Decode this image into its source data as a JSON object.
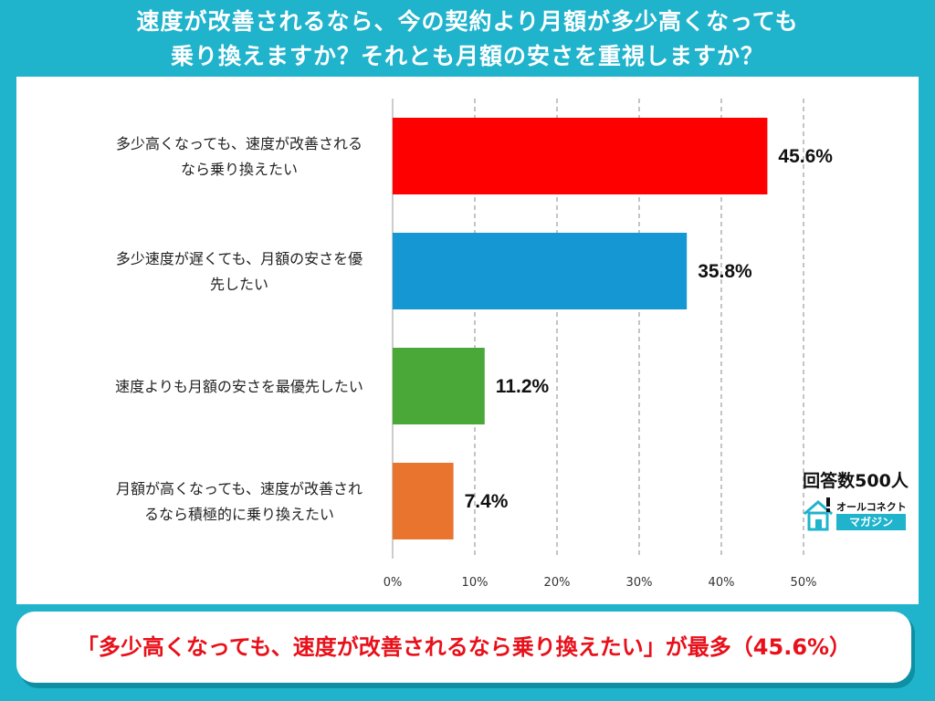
{
  "title_line1": "速度が改善されるなら、今の契約より月額が多少高くなっても",
  "title_line2": "乗り換えますか？それとも月額の安さを重視しますか？",
  "respondents": "回答数500人",
  "logo": {
    "top": "オールコネクト",
    "bottom": "マガジン",
    "icon": "house-icon"
  },
  "summary": "「多少高くなっても、速度が改善されるなら乗り換えたい」が最多（45.6%）",
  "colors": {
    "background": "#1fb3cc",
    "summary_text": "#e8101a"
  },
  "chart_data": {
    "type": "bar",
    "orientation": "horizontal",
    "categories": [
      [
        "多少高くなっても、速度が改善される",
        "なら乗り換えたい"
      ],
      [
        "多少速度が遅くても、月額の安さを優",
        "先したい"
      ],
      [
        "速度よりも月額の安さを最優先したい"
      ],
      [
        "月額が高くなっても、速度が改善され",
        "るなら積極的に乗り換えたい"
      ]
    ],
    "values": [
      45.6,
      35.8,
      11.2,
      7.4
    ],
    "value_labels": [
      "45.6%",
      "35.8%",
      "11.2%",
      "7.4%"
    ],
    "colors": [
      "#ff0000",
      "#1597d3",
      "#4aa838",
      "#e8742e"
    ],
    "xlim": [
      0,
      50
    ],
    "xticks": [
      "0%",
      "10%",
      "20%",
      "30%",
      "40%",
      "50%"
    ],
    "grid": true
  }
}
